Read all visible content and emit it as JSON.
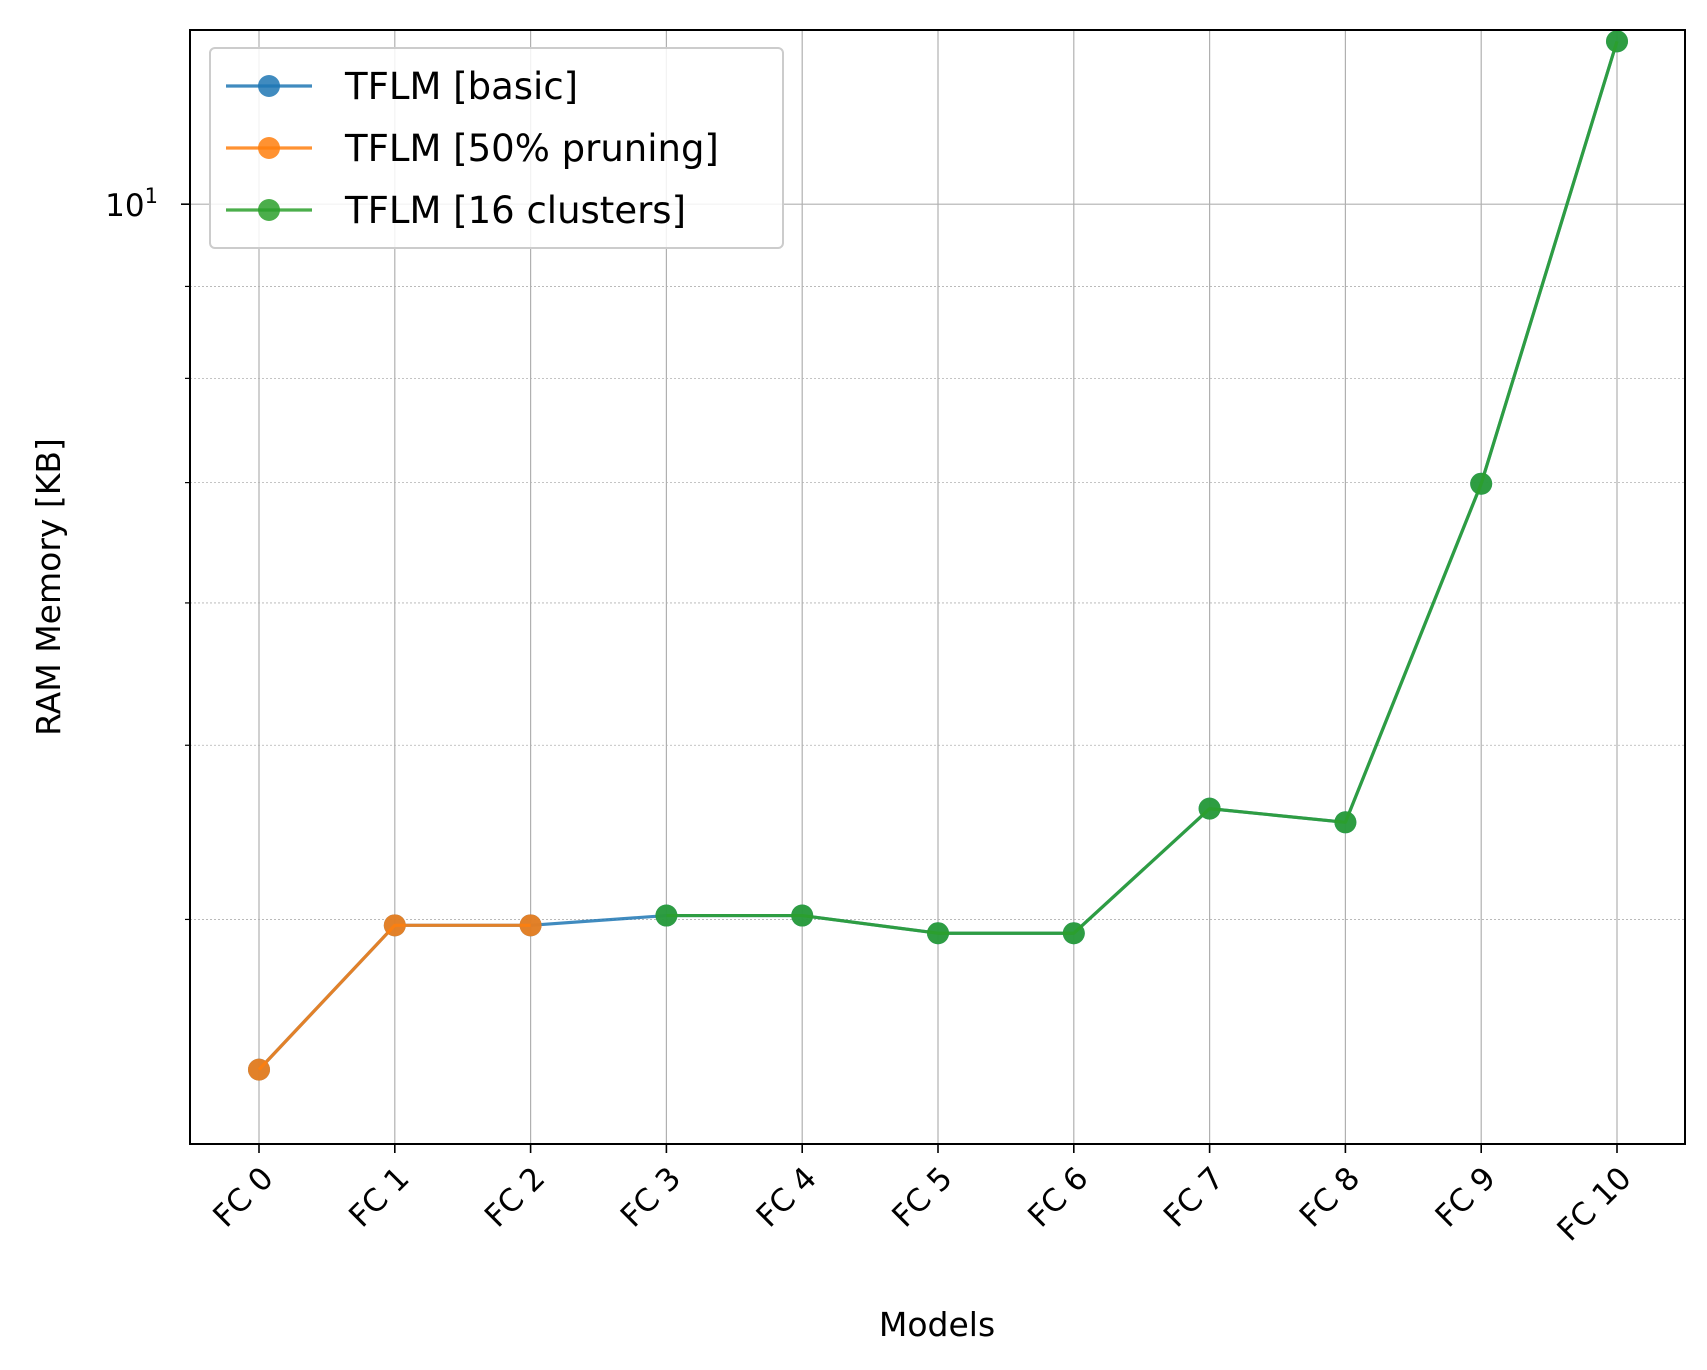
{
  "chart_data": {
    "type": "line",
    "title": "",
    "xlabel": "Models",
    "ylabel": "RAM Memory [KB]",
    "yscale": "log",
    "ylim": [
      3.0,
      12.5
    ],
    "y_major_ticks": [
      {
        "value": 10,
        "base": "10",
        "exponent": "1"
      }
    ],
    "y_minor_ticks": [
      4,
      5,
      6,
      7,
      8,
      9
    ],
    "grid": "on (major and minor)",
    "legend_position": "upper-left",
    "categories": [
      "FC 0",
      "FC 1",
      "FC 2",
      "FC 3",
      "FC 4",
      "FC 5",
      "FC 6",
      "FC 7",
      "FC 8",
      "FC 9",
      "FC 10"
    ],
    "series": [
      {
        "name": "TFLM [basic]",
        "color": "#1f77b4",
        "values": [
          3.3,
          3.97,
          3.97,
          4.02,
          4.02,
          3.93,
          3.93,
          4.61,
          4.53,
          6.99,
          12.32
        ]
      },
      {
        "name": "TFLM [50% pruning]",
        "color": "#ff7f0e",
        "values": [
          3.3,
          3.97,
          3.97,
          null,
          null,
          null,
          null,
          null,
          null,
          null,
          null
        ]
      },
      {
        "name": "TFLM [16 clusters]",
        "color": "#2ca02c",
        "values": [
          null,
          null,
          null,
          4.02,
          4.02,
          3.93,
          3.93,
          4.61,
          4.53,
          6.99,
          12.32
        ]
      }
    ]
  }
}
